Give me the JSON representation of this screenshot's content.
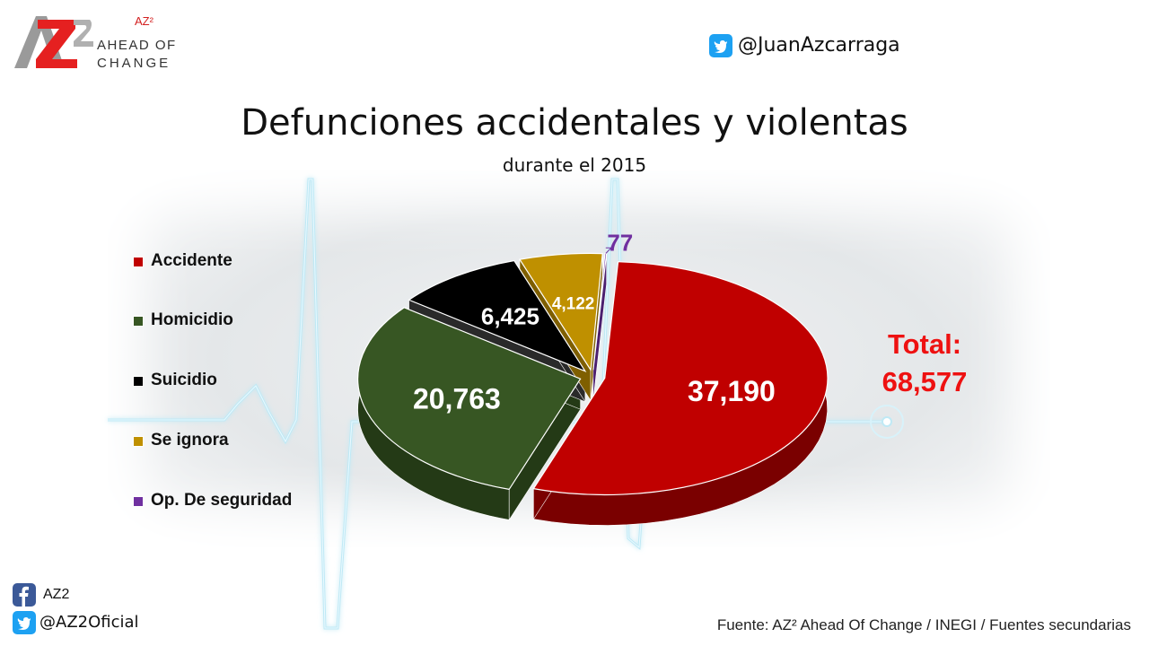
{
  "brand": {
    "logo_text": "AZ2",
    "superscript": "AZ²",
    "line1": "AHEAD OF",
    "line2": "CHANGE",
    "twitter_handle": "@JuanAzcarraga"
  },
  "social": {
    "facebook_name": "AZ2",
    "twitter_handle": "@AZ2Oficial"
  },
  "source": "Fuente: AZ² Ahead Of Change / INEGI / Fuentes secundarias",
  "total": {
    "label": "Total:",
    "value": "68,577",
    "color": "#ee1111"
  },
  "chart_data": {
    "type": "pie",
    "title": "Defunciones accidentales y violentas",
    "subtitle": "durante el 2015",
    "categories": [
      "Accidente",
      "Homicidio",
      "Suicidio",
      "Se ignora",
      "Op. De seguridad"
    ],
    "values": [
      37190,
      20763,
      6425,
      4122,
      77
    ],
    "value_labels": [
      "37,190",
      "20,763",
      "6,425",
      "4,122",
      "77"
    ],
    "colors": [
      "#c00000",
      "#375623",
      "#000000",
      "#bf9000",
      "#7030a0"
    ],
    "side_colors": [
      "#7a0000",
      "#243a16",
      "#2a2a2a",
      "#7f5f00",
      "#4b1f6f"
    ],
    "label_colors": [
      "#ffffff",
      "#ffffff",
      "#ffffff",
      "#ffffff",
      "#7030a0"
    ],
    "legend_position": "left",
    "style": "3d-exploded"
  }
}
